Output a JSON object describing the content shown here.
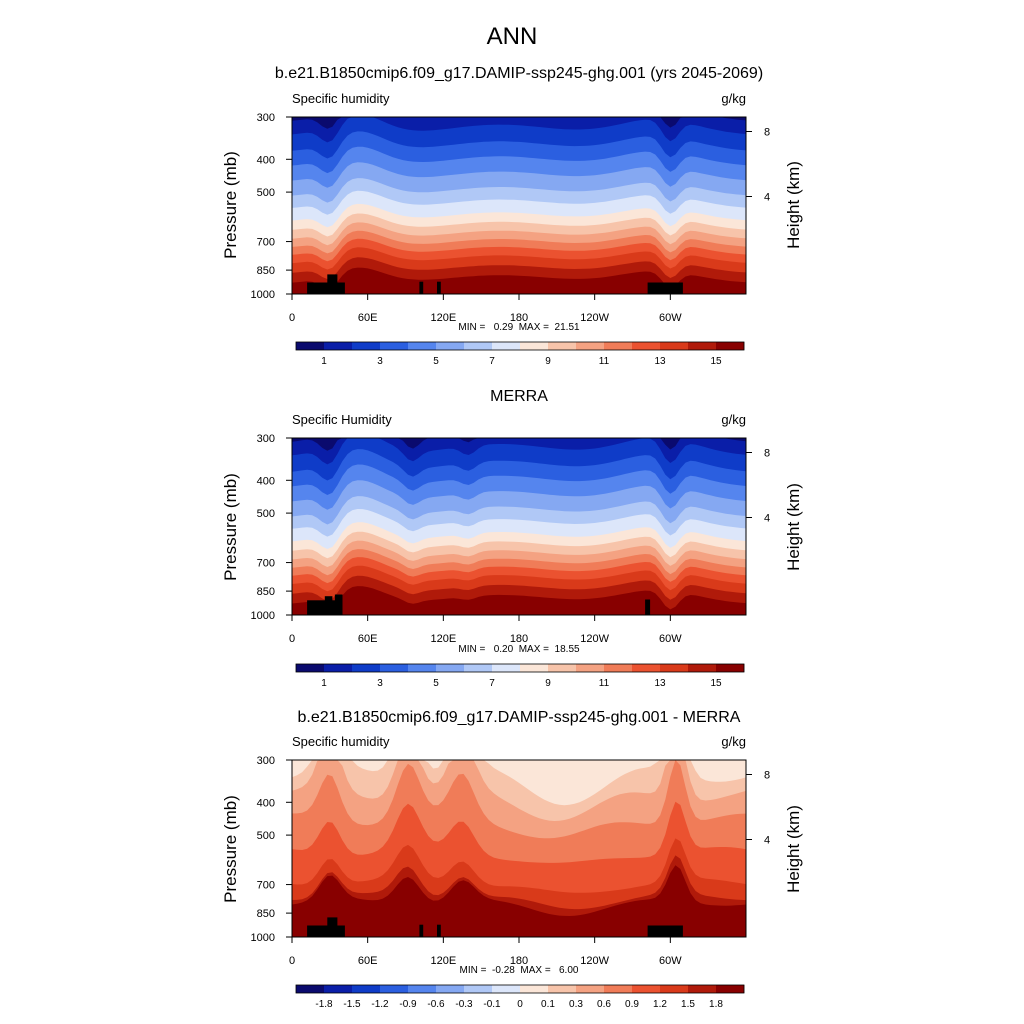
{
  "figure_title": "ANN",
  "chart_data": [
    {
      "type": "contour",
      "title": "b.e21.B1850cmip6.f09_g17.DAMIP-ssp245-ghg.001 (yrs 2045-2069)",
      "variable": "Specific humidity",
      "units": "g/kg",
      "ylabel": "Pressure (mb)",
      "y2label": "Height (km)",
      "y_ticks": [
        "300",
        "400",
        "500",
        "700",
        "850",
        "1000"
      ],
      "y_tick_values": [
        300,
        400,
        500,
        700,
        850,
        1000
      ],
      "y2_ticks": [
        "8",
        "4"
      ],
      "x_ticks": [
        "0",
        "60E",
        "120E",
        "180",
        "120W",
        "60W"
      ],
      "x_tick_values": [
        0,
        60,
        120,
        180,
        240,
        300
      ],
      "xlim": [
        0,
        360
      ],
      "stats": "MIN =   0.29  MAX =  21.51",
      "min": 0.29,
      "max": 21.51,
      "colorbar_labels": [
        "1",
        "3",
        "5",
        "7",
        "9",
        "11",
        "13",
        "15"
      ],
      "colors": [
        "#0a0a6e",
        "#0a1ea8",
        "#0f3cc8",
        "#2b5fe0",
        "#5585ee",
        "#85a8f2",
        "#b0c8f6",
        "#dce6fa",
        "#fbe6d8",
        "#f7c4aa",
        "#f4a282",
        "#f07c58",
        "#eb5230",
        "#d93a1a",
        "#b01a0a",
        "#880000"
      ]
    },
    {
      "type": "contour",
      "title": "MERRA",
      "variable": "Specific Humidity",
      "units": "g/kg",
      "ylabel": "Pressure (mb)",
      "y2label": "Height (km)",
      "y_ticks": [
        "300",
        "400",
        "500",
        "700",
        "850",
        "1000"
      ],
      "y_tick_values": [
        300,
        400,
        500,
        700,
        850,
        1000
      ],
      "y2_ticks": [
        "8",
        "4"
      ],
      "x_ticks": [
        "0",
        "60E",
        "120E",
        "180",
        "120W",
        "60W"
      ],
      "x_tick_values": [
        0,
        60,
        120,
        180,
        240,
        300
      ],
      "xlim": [
        0,
        360
      ],
      "stats": "MIN =   0.20  MAX =  18.55",
      "min": 0.2,
      "max": 18.55,
      "colorbar_labels": [
        "1",
        "3",
        "5",
        "7",
        "9",
        "11",
        "13",
        "15"
      ],
      "colors": [
        "#0a0a6e",
        "#0a1ea8",
        "#0f3cc8",
        "#2b5fe0",
        "#5585ee",
        "#85a8f2",
        "#b0c8f6",
        "#dce6fa",
        "#fbe6d8",
        "#f7c4aa",
        "#f4a282",
        "#f07c58",
        "#eb5230",
        "#d93a1a",
        "#b01a0a",
        "#880000"
      ]
    },
    {
      "type": "contour",
      "title": "b.e21.B1850cmip6.f09_g17.DAMIP-ssp245-ghg.001 - MERRA",
      "variable": "Specific humidity",
      "units": "g/kg",
      "ylabel": "Pressure (mb)",
      "y2label": "Height (km)",
      "y_ticks": [
        "300",
        "400",
        "500",
        "700",
        "850",
        "1000"
      ],
      "y_tick_values": [
        300,
        400,
        500,
        700,
        850,
        1000
      ],
      "y2_ticks": [
        "8",
        "4"
      ],
      "x_ticks": [
        "0",
        "60E",
        "120E",
        "180",
        "120W",
        "60W"
      ],
      "x_tick_values": [
        0,
        60,
        120,
        180,
        240,
        300
      ],
      "xlim": [
        0,
        360
      ],
      "stats": "MIN =  -0.28  MAX =   6.00",
      "min": -0.28,
      "max": 6.0,
      "colorbar_labels": [
        "-1.8",
        "-1.5",
        "-1.2",
        "-0.9",
        "-0.6",
        "-0.3",
        "-0.1",
        "0",
        "0.1",
        "0.3",
        "0.6",
        "0.9",
        "1.2",
        "1.5",
        "1.8"
      ],
      "colors": [
        "#0a0a6e",
        "#0a1ea8",
        "#0f3cc8",
        "#2b5fe0",
        "#5585ee",
        "#85a8f2",
        "#b0c8f6",
        "#dce6fa",
        "#fbe6d8",
        "#f7c4aa",
        "#f4a282",
        "#f07c58",
        "#eb5230",
        "#d93a1a",
        "#b01a0a",
        "#880000"
      ]
    }
  ]
}
